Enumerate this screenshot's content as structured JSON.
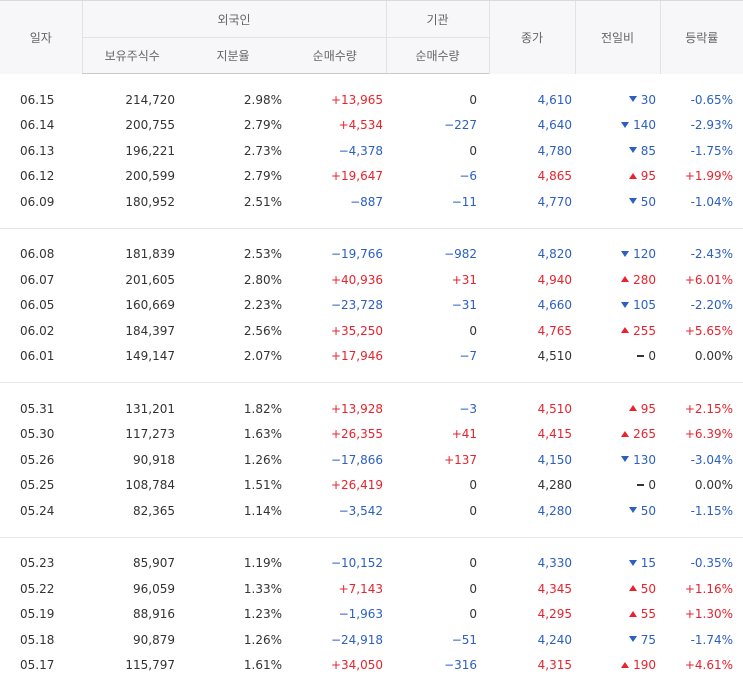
{
  "header": {
    "date": "일자",
    "foreign_group": "외국인",
    "foreign_holdings": "보유주식수",
    "foreign_ratio": "지분율",
    "foreign_net": "순매수량",
    "inst_group": "기관",
    "inst_net": "순매수량",
    "close": "종가",
    "change": "전일비",
    "rate": "등락률"
  },
  "colors": {
    "up": "#e8232d",
    "down": "#2c5fc2",
    "flat": "#333333"
  },
  "rows": [
    {
      "date": "06.15",
      "holdings": "214,720",
      "ratio": "2.98%",
      "fnet": "+13,965",
      "fdir": "up",
      "inet": "0",
      "idir": "flat",
      "close": "4,610",
      "cdir": "down",
      "change": "30",
      "chdir": "down",
      "rate": "-0.65%"
    },
    {
      "date": "06.14",
      "holdings": "200,755",
      "ratio": "2.79%",
      "fnet": "+4,534",
      "fdir": "up",
      "inet": "−227",
      "idir": "down",
      "close": "4,640",
      "cdir": "down",
      "change": "140",
      "chdir": "down",
      "rate": "-2.93%"
    },
    {
      "date": "06.13",
      "holdings": "196,221",
      "ratio": "2.73%",
      "fnet": "−4,378",
      "fdir": "down",
      "inet": "0",
      "idir": "flat",
      "close": "4,780",
      "cdir": "down",
      "change": "85",
      "chdir": "down",
      "rate": "-1.75%"
    },
    {
      "date": "06.12",
      "holdings": "200,599",
      "ratio": "2.79%",
      "fnet": "+19,647",
      "fdir": "up",
      "inet": "−6",
      "idir": "down",
      "close": "4,865",
      "cdir": "up",
      "change": "95",
      "chdir": "up",
      "rate": "+1.99%"
    },
    {
      "date": "06.09",
      "holdings": "180,952",
      "ratio": "2.51%",
      "fnet": "−887",
      "fdir": "down",
      "inet": "−11",
      "idir": "down",
      "close": "4,770",
      "cdir": "down",
      "change": "50",
      "chdir": "down",
      "rate": "-1.04%"
    },
    {
      "date": "06.08",
      "holdings": "181,839",
      "ratio": "2.53%",
      "fnet": "−19,766",
      "fdir": "down",
      "inet": "−982",
      "idir": "down",
      "close": "4,820",
      "cdir": "down",
      "change": "120",
      "chdir": "down",
      "rate": "-2.43%"
    },
    {
      "date": "06.07",
      "holdings": "201,605",
      "ratio": "2.80%",
      "fnet": "+40,936",
      "fdir": "up",
      "inet": "+31",
      "idir": "up",
      "close": "4,940",
      "cdir": "up",
      "change": "280",
      "chdir": "up",
      "rate": "+6.01%"
    },
    {
      "date": "06.05",
      "holdings": "160,669",
      "ratio": "2.23%",
      "fnet": "−23,728",
      "fdir": "down",
      "inet": "−31",
      "idir": "down",
      "close": "4,660",
      "cdir": "down",
      "change": "105",
      "chdir": "down",
      "rate": "-2.20%"
    },
    {
      "date": "06.02",
      "holdings": "184,397",
      "ratio": "2.56%",
      "fnet": "+35,250",
      "fdir": "up",
      "inet": "0",
      "idir": "flat",
      "close": "4,765",
      "cdir": "up",
      "change": "255",
      "chdir": "up",
      "rate": "+5.65%"
    },
    {
      "date": "06.01",
      "holdings": "149,147",
      "ratio": "2.07%",
      "fnet": "+17,946",
      "fdir": "up",
      "inet": "−7",
      "idir": "down",
      "close": "4,510",
      "cdir": "flat",
      "change": "0",
      "chdir": "flat",
      "rate": "0.00%"
    },
    {
      "date": "05.31",
      "holdings": "131,201",
      "ratio": "1.82%",
      "fnet": "+13,928",
      "fdir": "up",
      "inet": "−3",
      "idir": "down",
      "close": "4,510",
      "cdir": "up",
      "change": "95",
      "chdir": "up",
      "rate": "+2.15%"
    },
    {
      "date": "05.30",
      "holdings": "117,273",
      "ratio": "1.63%",
      "fnet": "+26,355",
      "fdir": "up",
      "inet": "+41",
      "idir": "up",
      "close": "4,415",
      "cdir": "up",
      "change": "265",
      "chdir": "up",
      "rate": "+6.39%"
    },
    {
      "date": "05.26",
      "holdings": "90,918",
      "ratio": "1.26%",
      "fnet": "−17,866",
      "fdir": "down",
      "inet": "+137",
      "idir": "up",
      "close": "4,150",
      "cdir": "down",
      "change": "130",
      "chdir": "down",
      "rate": "-3.04%"
    },
    {
      "date": "05.25",
      "holdings": "108,784",
      "ratio": "1.51%",
      "fnet": "+26,419",
      "fdir": "up",
      "inet": "0",
      "idir": "flat",
      "close": "4,280",
      "cdir": "flat",
      "change": "0",
      "chdir": "flat",
      "rate": "0.00%"
    },
    {
      "date": "05.24",
      "holdings": "82,365",
      "ratio": "1.14%",
      "fnet": "−3,542",
      "fdir": "down",
      "inet": "0",
      "idir": "flat",
      "close": "4,280",
      "cdir": "down",
      "change": "50",
      "chdir": "down",
      "rate": "-1.15%"
    },
    {
      "date": "05.23",
      "holdings": "85,907",
      "ratio": "1.19%",
      "fnet": "−10,152",
      "fdir": "down",
      "inet": "0",
      "idir": "flat",
      "close": "4,330",
      "cdir": "down",
      "change": "15",
      "chdir": "down",
      "rate": "-0.35%"
    },
    {
      "date": "05.22",
      "holdings": "96,059",
      "ratio": "1.33%",
      "fnet": "+7,143",
      "fdir": "up",
      "inet": "0",
      "idir": "flat",
      "close": "4,345",
      "cdir": "up",
      "change": "50",
      "chdir": "up",
      "rate": "+1.16%"
    },
    {
      "date": "05.19",
      "holdings": "88,916",
      "ratio": "1.23%",
      "fnet": "−1,963",
      "fdir": "down",
      "inet": "0",
      "idir": "flat",
      "close": "4,295",
      "cdir": "up",
      "change": "55",
      "chdir": "up",
      "rate": "+1.30%"
    },
    {
      "date": "05.18",
      "holdings": "90,879",
      "ratio": "1.26%",
      "fnet": "−24,918",
      "fdir": "down",
      "inet": "−51",
      "idir": "down",
      "close": "4,240",
      "cdir": "down",
      "change": "75",
      "chdir": "down",
      "rate": "-1.74%"
    },
    {
      "date": "05.17",
      "holdings": "115,797",
      "ratio": "1.61%",
      "fnet": "+34,050",
      "fdir": "up",
      "inet": "−316",
      "idir": "down",
      "close": "4,315",
      "cdir": "up",
      "change": "190",
      "chdir": "up",
      "rate": "+4.61%"
    }
  ]
}
